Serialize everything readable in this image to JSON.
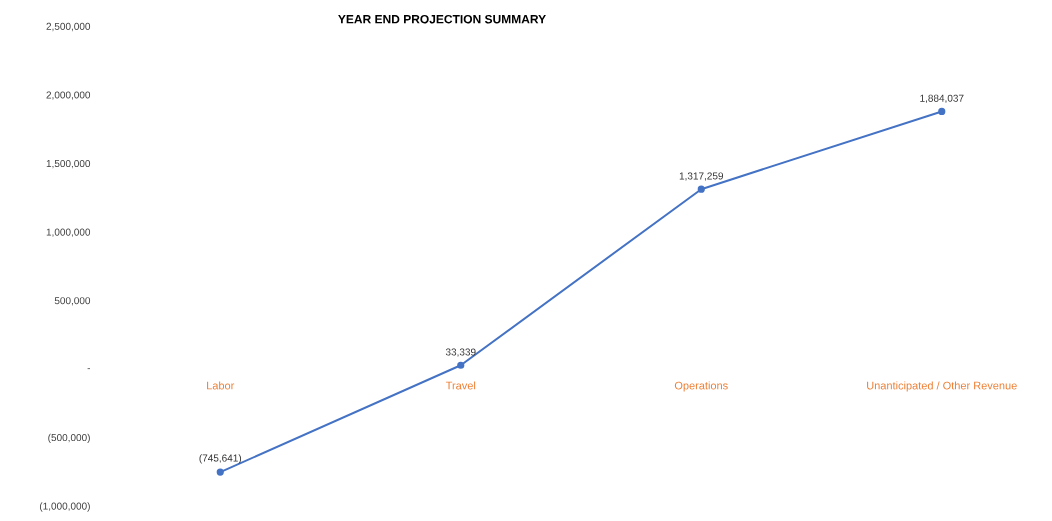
{
  "chart_data": {
    "type": "line",
    "title": "YEAR END PROJECTION SUMMARY",
    "categories": [
      "Labor",
      "Travel",
      "Operations",
      "Unanticipated / Other Revenue"
    ],
    "series": [
      {
        "color": "#4472c4",
        "values": [
          -745641,
          33339,
          1317259,
          1884037
        ],
        "value_labels": [
          "(745,641)",
          "33,339",
          "1,317,259",
          "1,884,037"
        ]
      }
    ],
    "ylim": [
      -1000000,
      2500000
    ],
    "yticks": [
      {
        "value": -1000000,
        "label": "(1,000,000)"
      },
      {
        "value": -500000,
        "label": "(500,000)"
      },
      {
        "value": 0,
        "label": "-"
      },
      {
        "value": 500000,
        "label": "500,000"
      },
      {
        "value": 1000000,
        "label": "1,000,000"
      },
      {
        "value": 1500000,
        "label": "1,500,000"
      },
      {
        "value": 2000000,
        "label": "2,000,000"
      },
      {
        "value": 2500000,
        "label": "2,500,000"
      }
    ],
    "marker": "circle",
    "line_style": "solid",
    "grid": false,
    "legend": false
  }
}
